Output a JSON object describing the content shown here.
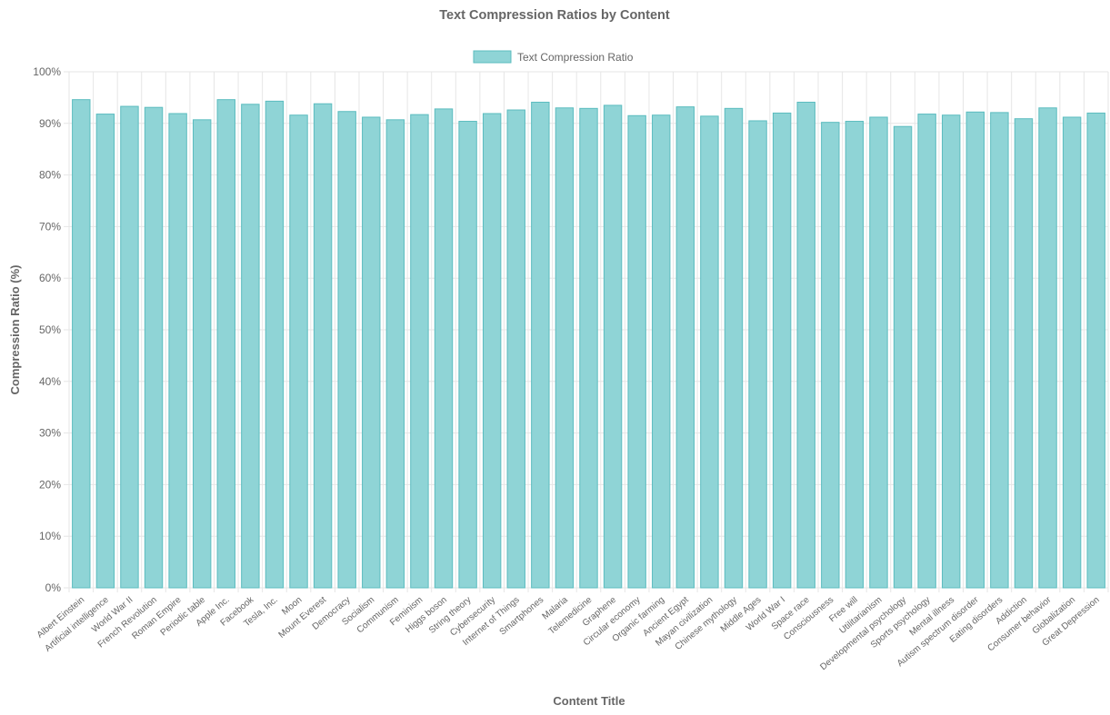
{
  "chart_data": {
    "type": "bar",
    "title": "Text Compression Ratios by Content",
    "xlabel": "Content Title",
    "ylabel": "Compression Ratio (%)",
    "ylim": [
      0,
      100
    ],
    "y_ticks": [
      "0%",
      "10%",
      "20%",
      "30%",
      "40%",
      "50%",
      "60%",
      "70%",
      "80%",
      "90%",
      "100%"
    ],
    "grid": true,
    "legend_position": "top-center",
    "colors": {
      "bar_fill": "#8fd4d6",
      "bar_stroke": "#5bbcbf",
      "grid": "#e6e6e6",
      "text": "#666666"
    },
    "categories": [
      "Albert Einstein",
      "Artificial intelligence",
      "World War II",
      "French Revolution",
      "Roman Empire",
      "Periodic table",
      "Apple Inc.",
      "Facebook",
      "Tesla, Inc.",
      "Moon",
      "Mount Everest",
      "Democracy",
      "Socialism",
      "Communism",
      "Feminism",
      "Higgs boson",
      "String theory",
      "Cybersecurity",
      "Internet of Things",
      "Smartphones",
      "Malaria",
      "Telemedicine",
      "Graphene",
      "Circular economy",
      "Organic farming",
      "Ancient Egypt",
      "Mayan civilization",
      "Chinese mythology",
      "Middle Ages",
      "World War I",
      "Space race",
      "Consciousness",
      "Free will",
      "Utilitarianism",
      "Developmental psychology",
      "Sports psychology",
      "Mental illness",
      "Autism spectrum disorder",
      "Eating disorders",
      "Addiction",
      "Consumer behavior",
      "Globalization",
      "Great Depression"
    ],
    "series": [
      {
        "name": "Text Compression Ratio",
        "values": [
          94.6,
          91.8,
          93.3,
          93.1,
          91.9,
          90.7,
          94.6,
          93.7,
          94.3,
          91.6,
          93.8,
          92.3,
          91.2,
          90.7,
          91.7,
          92.8,
          90.4,
          91.9,
          92.6,
          94.1,
          93.0,
          92.9,
          93.5,
          91.5,
          91.6,
          93.2,
          91.4,
          92.9,
          90.5,
          92.0,
          94.1,
          90.2,
          90.4,
          91.2,
          89.4,
          91.8,
          91.6,
          92.2,
          92.1,
          90.9,
          93.0,
          91.2,
          92.0
        ]
      }
    ]
  }
}
